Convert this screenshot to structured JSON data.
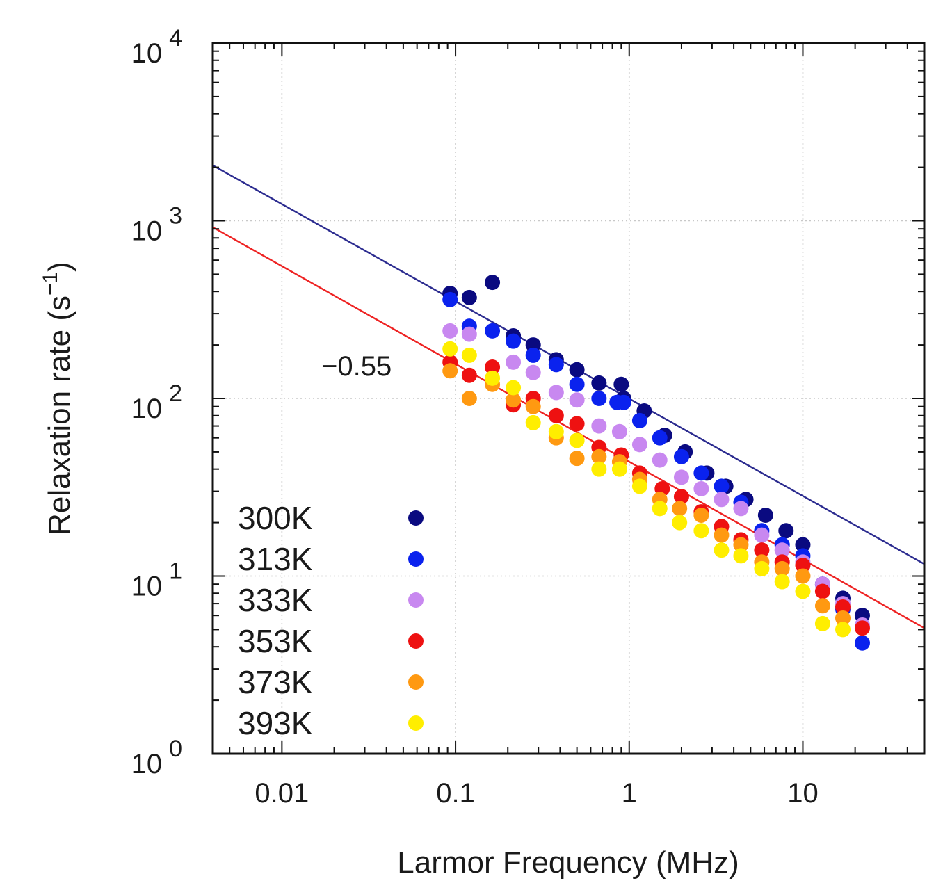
{
  "chart_data": {
    "type": "scatter",
    "title": "",
    "xlabel": "Larmor Frequency (MHz)",
    "ylabel": "Relaxation rate (s",
    "ylabel_sup": "−1",
    "ylabel_close": ")",
    "xscale": "log",
    "yscale": "log",
    "xlim": [
      0.004,
      50
    ],
    "ylim": [
      1,
      10000
    ],
    "grid": true,
    "legend_position": "bottom-left",
    "x_ticks": [
      {
        "value": 0.01,
        "label": "0.01"
      },
      {
        "value": 0.1,
        "label": "0.1"
      },
      {
        "value": 1,
        "label": "1"
      },
      {
        "value": 10,
        "label": "10"
      }
    ],
    "y_ticks": [
      {
        "value": 1,
        "base": "10",
        "exp": "0"
      },
      {
        "value": 10,
        "base": "10",
        "exp": "1"
      },
      {
        "value": 100,
        "base": "10",
        "exp": "2"
      },
      {
        "value": 1000,
        "base": "10",
        "exp": "3"
      },
      {
        "value": 10000,
        "base": "10",
        "exp": "4"
      }
    ],
    "annotations": [
      {
        "text": "−0.55",
        "x": 0.045,
        "y": 160
      }
    ],
    "fit_lines": [
      {
        "name": "fit-300K",
        "color": "#2b2b8f",
        "x": [
          0.004,
          50
        ],
        "y": [
          2050,
          11.7
        ]
      },
      {
        "name": "fit-353K",
        "color": "#ee2222",
        "x": [
          0.004,
          50
        ],
        "y": [
          920,
          5.1
        ]
      }
    ],
    "series": [
      {
        "name": "300K",
        "color": "#0a0a80",
        "x": [
          0.093,
          0.12,
          0.163,
          0.215,
          0.28,
          0.38,
          0.5,
          0.67,
          0.9,
          0.93,
          1.22,
          1.6,
          2.1,
          2.8,
          3.6,
          4.7,
          6.1,
          8.0,
          10.0,
          13.0,
          17.0,
          22.0
        ],
        "y": [
          390,
          370,
          450,
          225,
          200,
          165,
          145,
          122,
          120,
          100,
          85,
          62,
          50,
          38,
          32,
          27,
          22,
          18,
          15,
          9,
          7.5,
          6
        ]
      },
      {
        "name": "313K",
        "color": "#0a22ee",
        "x": [
          0.093,
          0.12,
          0.163,
          0.215,
          0.28,
          0.38,
          0.5,
          0.67,
          0.85,
          0.93,
          1.15,
          1.5,
          2.0,
          2.6,
          3.4,
          4.4,
          5.8,
          7.6,
          10.0,
          13.0,
          17.0,
          22.0
        ],
        "y": [
          360,
          255,
          240,
          210,
          175,
          155,
          120,
          100,
          95,
          95,
          75,
          60,
          47,
          38,
          32,
          26,
          18,
          15,
          13,
          9,
          6.5,
          4.2
        ]
      },
      {
        "name": "333K",
        "color": "#c888f0",
        "x": [
          0.093,
          0.12,
          0.215,
          0.28,
          0.38,
          0.5,
          0.67,
          0.88,
          1.15,
          1.5,
          2.0,
          2.6,
          3.4,
          4.4,
          5.8,
          7.6,
          10.0,
          13.0,
          17.0,
          22.0
        ],
        "y": [
          240,
          230,
          160,
          140,
          108,
          98,
          70,
          65,
          55,
          45,
          36,
          31,
          27,
          24,
          17,
          14,
          12,
          9,
          7,
          5.3
        ]
      },
      {
        "name": "353K",
        "color": "#ee1111",
        "x": [
          0.093,
          0.12,
          0.163,
          0.215,
          0.28,
          0.38,
          0.5,
          0.67,
          0.9,
          1.15,
          1.55,
          2.0,
          2.6,
          3.4,
          4.4,
          5.8,
          7.6,
          10.0,
          13.0,
          17.0,
          22.0
        ],
        "y": [
          160,
          135,
          150,
          92,
          100,
          80,
          72,
          53,
          48,
          38,
          31,
          28,
          23,
          19,
          16,
          14,
          12,
          11.5,
          8.2,
          6.7,
          5.1
        ]
      },
      {
        "name": "373K",
        "color": "#ff9911",
        "x": [
          0.093,
          0.12,
          0.163,
          0.215,
          0.28,
          0.38,
          0.5,
          0.67,
          0.88,
          1.15,
          1.5,
          1.95,
          2.6,
          3.4,
          4.4,
          5.8,
          7.6,
          10.0,
          13.0,
          17.0
        ],
        "y": [
          143,
          100,
          120,
          98,
          90,
          60,
          46,
          47,
          44,
          35,
          27,
          24,
          22,
          17,
          15,
          12,
          11,
          10,
          6.8,
          5.8
        ]
      },
      {
        "name": "393K",
        "color": "#ffee00",
        "x": [
          0.093,
          0.12,
          0.163,
          0.215,
          0.28,
          0.38,
          0.5,
          0.67,
          0.88,
          1.15,
          1.5,
          1.95,
          2.6,
          3.4,
          4.4,
          5.8,
          7.6,
          10.0,
          13.0,
          17.0
        ],
        "y": [
          190,
          175,
          130,
          115,
          73,
          65,
          58,
          40,
          40,
          32,
          24,
          20,
          18,
          14,
          13,
          11,
          9.3,
          8.2,
          5.4,
          5
        ]
      }
    ]
  }
}
